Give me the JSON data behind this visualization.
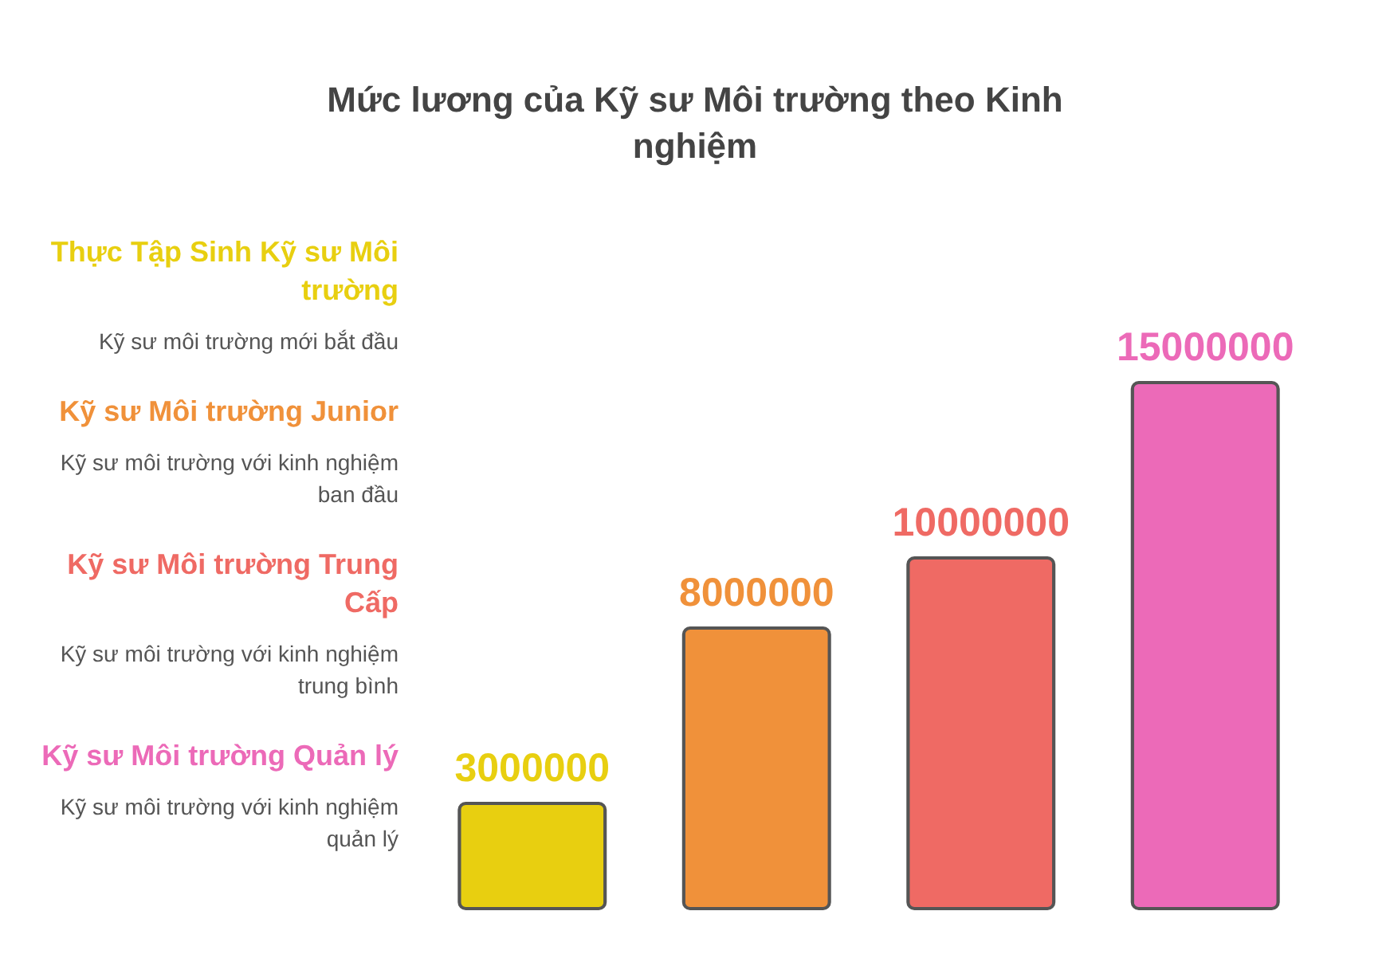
{
  "chart_data": {
    "type": "bar",
    "title": "Mức lương của Kỹ sư Môi trường theo Kinh nghiệm",
    "categories": [
      null,
      null,
      null,
      null
    ],
    "stacked": true,
    "series": [
      {
        "name": "Thực Tập Sinh Kỹ sư Môi trường",
        "color": "#e8cf10",
        "values": [
          3000000,
          null,
          null,
          null
        ]
      },
      {
        "name": "Kỹ sư Môi trường Junior",
        "color": "#f0913a",
        "values": [
          null,
          8000000,
          null,
          null
        ]
      },
      {
        "name": "Kỹ sư Môi trường Trung Cấp",
        "color": "#ef6a64",
        "values": [
          null,
          null,
          10000000,
          null
        ]
      },
      {
        "name": "Kỹ sư Môi trường Quản lý",
        "color": "#ec6ab8",
        "values": [
          null,
          null,
          null,
          15000000
        ]
      }
    ],
    "data_labels": true,
    "annotations": [
      "Kỹ sư môi trường mới bắt đầu",
      "Kỹ sư môi trường với kinh nghiệm ban đầu",
      "Kỹ sư môi trường với kinh nghiệm trung bình",
      "Kỹ sư môi trường với kinh nghiệm quản lý"
    ]
  }
}
